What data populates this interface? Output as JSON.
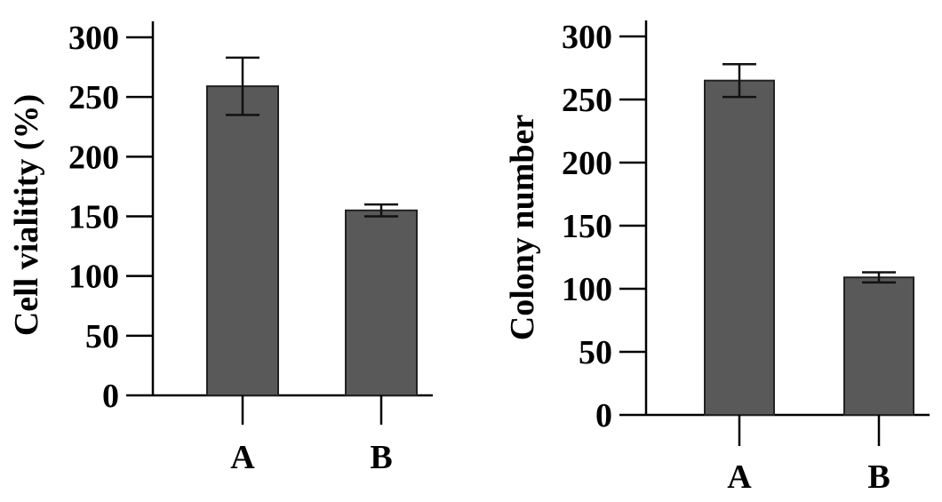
{
  "chart_data": [
    {
      "type": "bar",
      "categories": [
        "A",
        "B"
      ],
      "values": [
        259,
        155
      ],
      "errors": [
        24,
        5
      ],
      "ylabel": "Cell vialitity (%)",
      "xlabel": "",
      "title": "",
      "ylim": [
        0,
        300
      ],
      "yticks": [
        0,
        50,
        100,
        150,
        200,
        250,
        300
      ],
      "bar_color": "#595959",
      "grid": false
    },
    {
      "type": "bar",
      "categories": [
        "A",
        "B"
      ],
      "values": [
        265,
        109
      ],
      "errors": [
        13,
        4
      ],
      "ylabel": "Colony number",
      "xlabel": "",
      "title": "",
      "ylim": [
        0,
        300
      ],
      "yticks": [
        0,
        50,
        100,
        150,
        200,
        250,
        300
      ],
      "bar_color": "#595959",
      "grid": false
    }
  ]
}
